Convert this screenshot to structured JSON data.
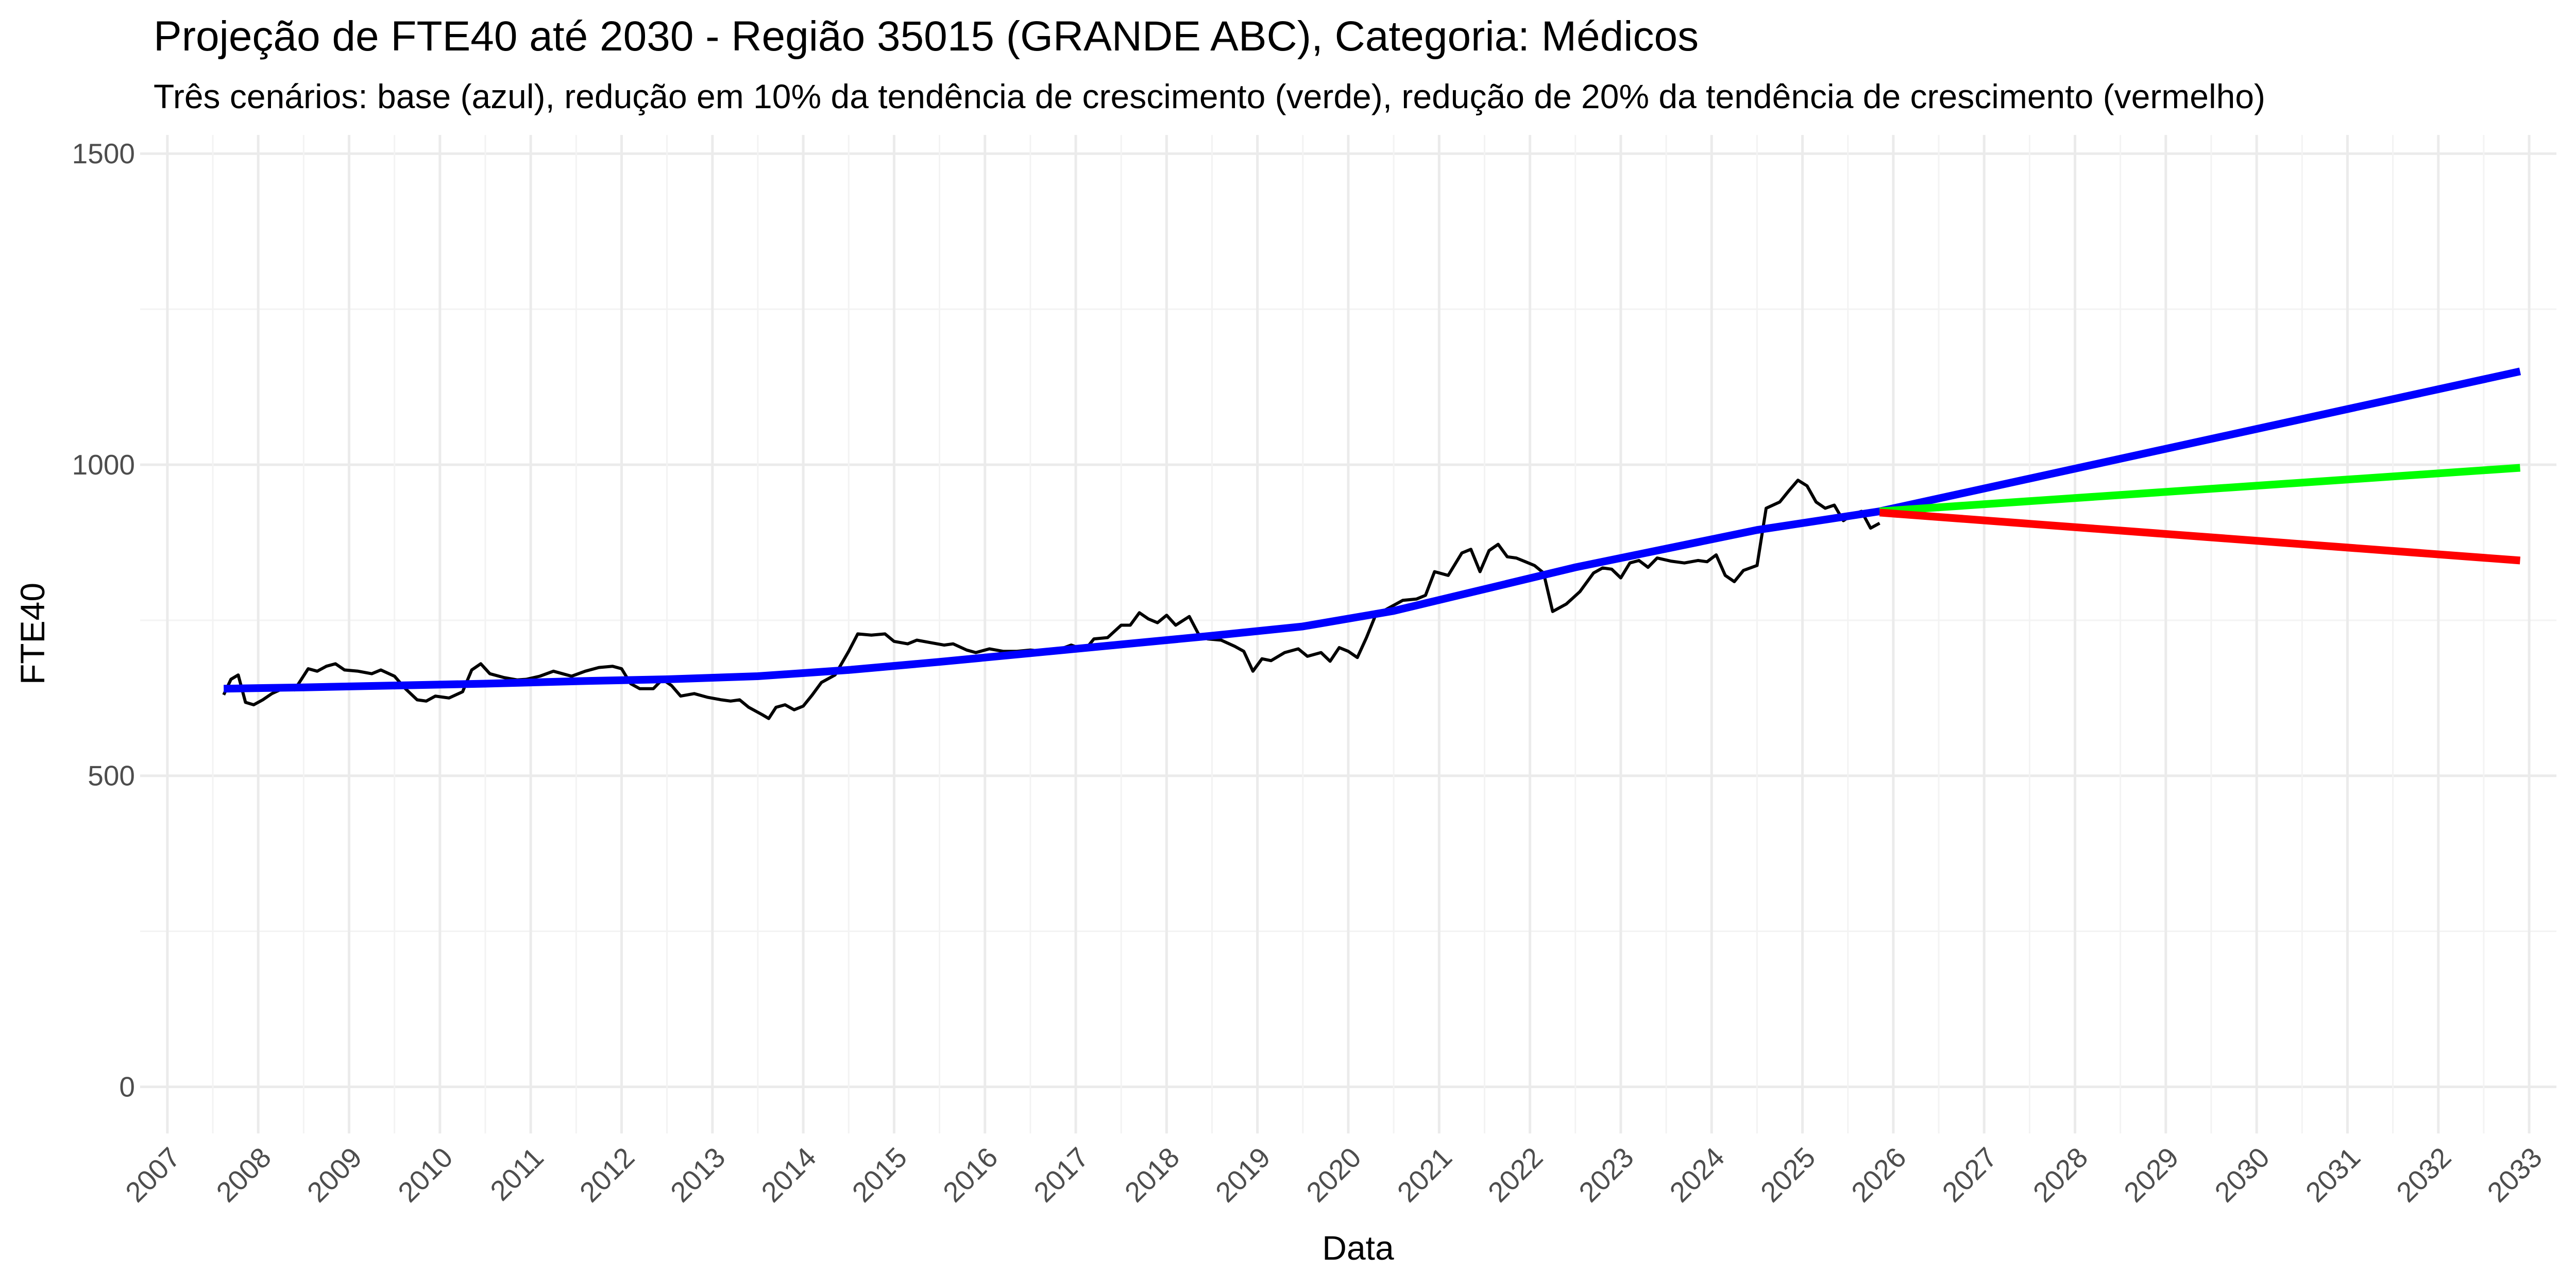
{
  "chart_data": {
    "type": "line",
    "title": "Projeção de FTE40 até 2030 - Região 35015 (GRANDE ABC), Categoria: Médicos",
    "subtitle": "Três cenários: base (azul), redução em 10% da tendência de crescimento (verde), redução de 20% da tendência de crescimento (vermelho)",
    "xlabel": "Data",
    "ylabel": "FTE40",
    "xlim": [
      2006.7,
      2033.3
    ],
    "ylim": [
      -75,
      1530
    ],
    "yticks": [
      0,
      500,
      1000,
      1500
    ],
    "xticks": [
      2007,
      2008,
      2009,
      2010,
      2011,
      2012,
      2013,
      2014,
      2015,
      2016,
      2017,
      2018,
      2019,
      2020,
      2021,
      2022,
      2023,
      2024,
      2025,
      2026,
      2027,
      2028,
      2029,
      2030,
      2031,
      2032,
      2033
    ],
    "grid": true,
    "legend": "none",
    "series": [
      {
        "color": "#000000",
        "points": [
          [
            2007.62,
            630
          ],
          [
            2007.7,
            655
          ],
          [
            2007.78,
            662
          ],
          [
            2007.86,
            618
          ],
          [
            2007.95,
            614
          ],
          [
            2008.05,
            622
          ],
          [
            2008.15,
            632
          ],
          [
            2008.3,
            642
          ],
          [
            2008.4,
            638
          ],
          [
            2008.55,
            672
          ],
          [
            2008.65,
            668
          ],
          [
            2008.75,
            676
          ],
          [
            2008.85,
            680
          ],
          [
            2008.95,
            670
          ],
          [
            2009.1,
            668
          ],
          [
            2009.25,
            664
          ],
          [
            2009.35,
            670
          ],
          [
            2009.5,
            660
          ],
          [
            2009.62,
            640
          ],
          [
            2009.75,
            622
          ],
          [
            2009.85,
            620
          ],
          [
            2009.95,
            628
          ],
          [
            2010.1,
            625
          ],
          [
            2010.25,
            635
          ],
          [
            2010.35,
            670
          ],
          [
            2010.45,
            680
          ],
          [
            2010.55,
            664
          ],
          [
            2010.7,
            658
          ],
          [
            2010.85,
            654
          ],
          [
            2010.95,
            655
          ],
          [
            2011.1,
            660
          ],
          [
            2011.25,
            668
          ],
          [
            2011.35,
            664
          ],
          [
            2011.45,
            660
          ],
          [
            2011.6,
            668
          ],
          [
            2011.75,
            674
          ],
          [
            2011.9,
            676
          ],
          [
            2012.0,
            672
          ],
          [
            2012.1,
            648
          ],
          [
            2012.2,
            640
          ],
          [
            2012.35,
            640
          ],
          [
            2012.45,
            655
          ],
          [
            2012.55,
            645
          ],
          [
            2012.65,
            628
          ],
          [
            2012.8,
            632
          ],
          [
            2012.95,
            626
          ],
          [
            2013.1,
            622
          ],
          [
            2013.2,
            620
          ],
          [
            2013.3,
            622
          ],
          [
            2013.4,
            610
          ],
          [
            2013.55,
            598
          ],
          [
            2013.62,
            592
          ],
          [
            2013.7,
            610
          ],
          [
            2013.8,
            614
          ],
          [
            2013.9,
            606
          ],
          [
            2014.0,
            612
          ],
          [
            2014.1,
            630
          ],
          [
            2014.2,
            650
          ],
          [
            2014.35,
            662
          ],
          [
            2014.5,
            700
          ],
          [
            2014.6,
            728
          ],
          [
            2014.75,
            726
          ],
          [
            2014.9,
            728
          ],
          [
            2015.0,
            716
          ],
          [
            2015.15,
            712
          ],
          [
            2015.25,
            718
          ],
          [
            2015.4,
            714
          ],
          [
            2015.55,
            710
          ],
          [
            2015.65,
            712
          ],
          [
            2015.8,
            702
          ],
          [
            2015.9,
            698
          ],
          [
            2016.05,
            704
          ],
          [
            2016.2,
            700
          ],
          [
            2016.35,
            700
          ],
          [
            2016.5,
            702
          ],
          [
            2016.65,
            700
          ],
          [
            2016.8,
            702
          ],
          [
            2016.95,
            710
          ],
          [
            2017.1,
            702
          ],
          [
            2017.2,
            720
          ],
          [
            2017.35,
            722
          ],
          [
            2017.5,
            742
          ],
          [
            2017.6,
            742
          ],
          [
            2017.7,
            762
          ],
          [
            2017.8,
            752
          ],
          [
            2017.9,
            746
          ],
          [
            2018.0,
            758
          ],
          [
            2018.1,
            742
          ],
          [
            2018.25,
            756
          ],
          [
            2018.35,
            728
          ],
          [
            2018.45,
            720
          ],
          [
            2018.6,
            718
          ],
          [
            2018.75,
            708
          ],
          [
            2018.85,
            700
          ],
          [
            2018.95,
            668
          ],
          [
            2019.05,
            688
          ],
          [
            2019.15,
            685
          ],
          [
            2019.3,
            698
          ],
          [
            2019.45,
            704
          ],
          [
            2019.55,
            692
          ],
          [
            2019.7,
            698
          ],
          [
            2019.8,
            684
          ],
          [
            2019.9,
            706
          ],
          [
            2020.0,
            700
          ],
          [
            2020.1,
            690
          ],
          [
            2020.2,
            722
          ],
          [
            2020.3,
            758
          ],
          [
            2020.45,
            770
          ],
          [
            2020.6,
            782
          ],
          [
            2020.75,
            784
          ],
          [
            2020.85,
            790
          ],
          [
            2020.95,
            828
          ],
          [
            2021.1,
            822
          ],
          [
            2021.25,
            858
          ],
          [
            2021.35,
            864
          ],
          [
            2021.45,
            828
          ],
          [
            2021.55,
            862
          ],
          [
            2021.65,
            872
          ],
          [
            2021.75,
            852
          ],
          [
            2021.85,
            850
          ],
          [
            2021.95,
            844
          ],
          [
            2022.05,
            838
          ],
          [
            2022.15,
            826
          ],
          [
            2022.25,
            764
          ],
          [
            2022.4,
            776
          ],
          [
            2022.55,
            796
          ],
          [
            2022.7,
            826
          ],
          [
            2022.8,
            834
          ],
          [
            2022.9,
            832
          ],
          [
            2023.0,
            818
          ],
          [
            2023.1,
            842
          ],
          [
            2023.2,
            846
          ],
          [
            2023.3,
            835
          ],
          [
            2023.4,
            850
          ],
          [
            2023.55,
            845
          ],
          [
            2023.7,
            842
          ],
          [
            2023.85,
            846
          ],
          [
            2023.95,
            844
          ],
          [
            2024.05,
            855
          ],
          [
            2024.15,
            822
          ],
          [
            2024.25,
            812
          ],
          [
            2024.35,
            830
          ],
          [
            2024.5,
            838
          ],
          [
            2024.6,
            930
          ],
          [
            2024.75,
            940
          ],
          [
            2024.85,
            958
          ],
          [
            2024.95,
            975
          ],
          [
            2025.05,
            966
          ],
          [
            2025.15,
            940
          ],
          [
            2025.25,
            930
          ],
          [
            2025.35,
            935
          ],
          [
            2025.45,
            910
          ],
          [
            2025.55,
            920
          ],
          [
            2025.65,
            925
          ],
          [
            2025.75,
            898
          ],
          [
            2025.85,
            906
          ]
        ]
      },
      {
        "color": "#0000ff",
        "points": [
          [
            2007.62,
            640
          ],
          [
            2008.5,
            642
          ],
          [
            2009.5,
            645
          ],
          [
            2010.5,
            648
          ],
          [
            2011.5,
            652
          ],
          [
            2012.5,
            655
          ],
          [
            2013.5,
            660
          ],
          [
            2014.5,
            670
          ],
          [
            2015.5,
            683
          ],
          [
            2016.5,
            697
          ],
          [
            2017.5,
            711
          ],
          [
            2018.5,
            725
          ],
          [
            2019.5,
            740
          ],
          [
            2020.5,
            765
          ],
          [
            2021.5,
            800
          ],
          [
            2022.5,
            835
          ],
          [
            2023.5,
            865
          ],
          [
            2024.5,
            895
          ],
          [
            2025.85,
            925
          ],
          [
            2032.9,
            1150
          ]
        ]
      },
      {
        "color": "#00ff00",
        "points": [
          [
            2025.85,
            925
          ],
          [
            2032.9,
            995
          ]
        ]
      },
      {
        "color": "#ff0000",
        "points": [
          [
            2025.85,
            923
          ],
          [
            2032.9,
            846
          ]
        ]
      }
    ]
  }
}
